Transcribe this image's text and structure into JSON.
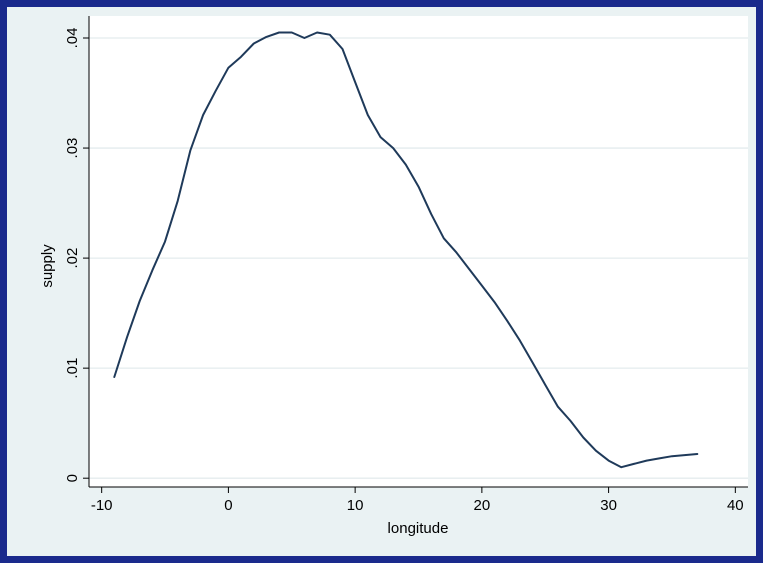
{
  "colors": {
    "border": "#1a2a8c",
    "outer_background": "#eaf2f3",
    "plot_background": "#ffffff",
    "grid": "#e4ecee",
    "line": "#1f3a5a"
  },
  "chart_data": {
    "type": "line",
    "xlabel": "longitude",
    "ylabel": "supply",
    "xlim": [
      -11,
      41
    ],
    "ylim": [
      -0.0008,
      0.042
    ],
    "x_ticks": [
      -10,
      0,
      10,
      20,
      30,
      40
    ],
    "x_tick_labels": [
      "-10",
      "0",
      "10",
      "20",
      "30",
      "40"
    ],
    "y_ticks": [
      0,
      0.01,
      0.02,
      0.03,
      0.04
    ],
    "y_tick_labels": [
      "0",
      ".01",
      ".02",
      ".03",
      ".04"
    ],
    "grid": true,
    "legend": "none",
    "series": [
      {
        "x": [
          -9,
          -8,
          -7,
          -6,
          -5,
          -4,
          -3,
          -2,
          -1,
          0,
          1,
          2,
          3,
          4,
          5,
          6,
          7,
          8,
          9,
          10,
          11,
          12,
          13,
          14,
          15,
          16,
          17,
          18,
          19,
          20,
          21,
          22,
          23,
          24,
          25,
          26,
          27,
          28,
          29,
          30,
          31,
          32,
          33,
          34,
          35,
          36,
          37
        ],
        "y": [
          0.0092,
          0.0128,
          0.0161,
          0.0189,
          0.0215,
          0.0252,
          0.0298,
          0.033,
          0.0352,
          0.0373,
          0.0383,
          0.0395,
          0.0401,
          0.0405,
          0.0405,
          0.04,
          0.0405,
          0.0403,
          0.039,
          0.036,
          0.033,
          0.031,
          0.03,
          0.0285,
          0.0265,
          0.024,
          0.0218,
          0.0205,
          0.019,
          0.0175,
          0.016,
          0.0143,
          0.0125,
          0.0105,
          0.0085,
          0.0065,
          0.0052,
          0.0037,
          0.0025,
          0.0016,
          0.001,
          0.0013,
          0.0016,
          0.0018,
          0.002,
          0.0021,
          0.0022
        ]
      }
    ]
  }
}
